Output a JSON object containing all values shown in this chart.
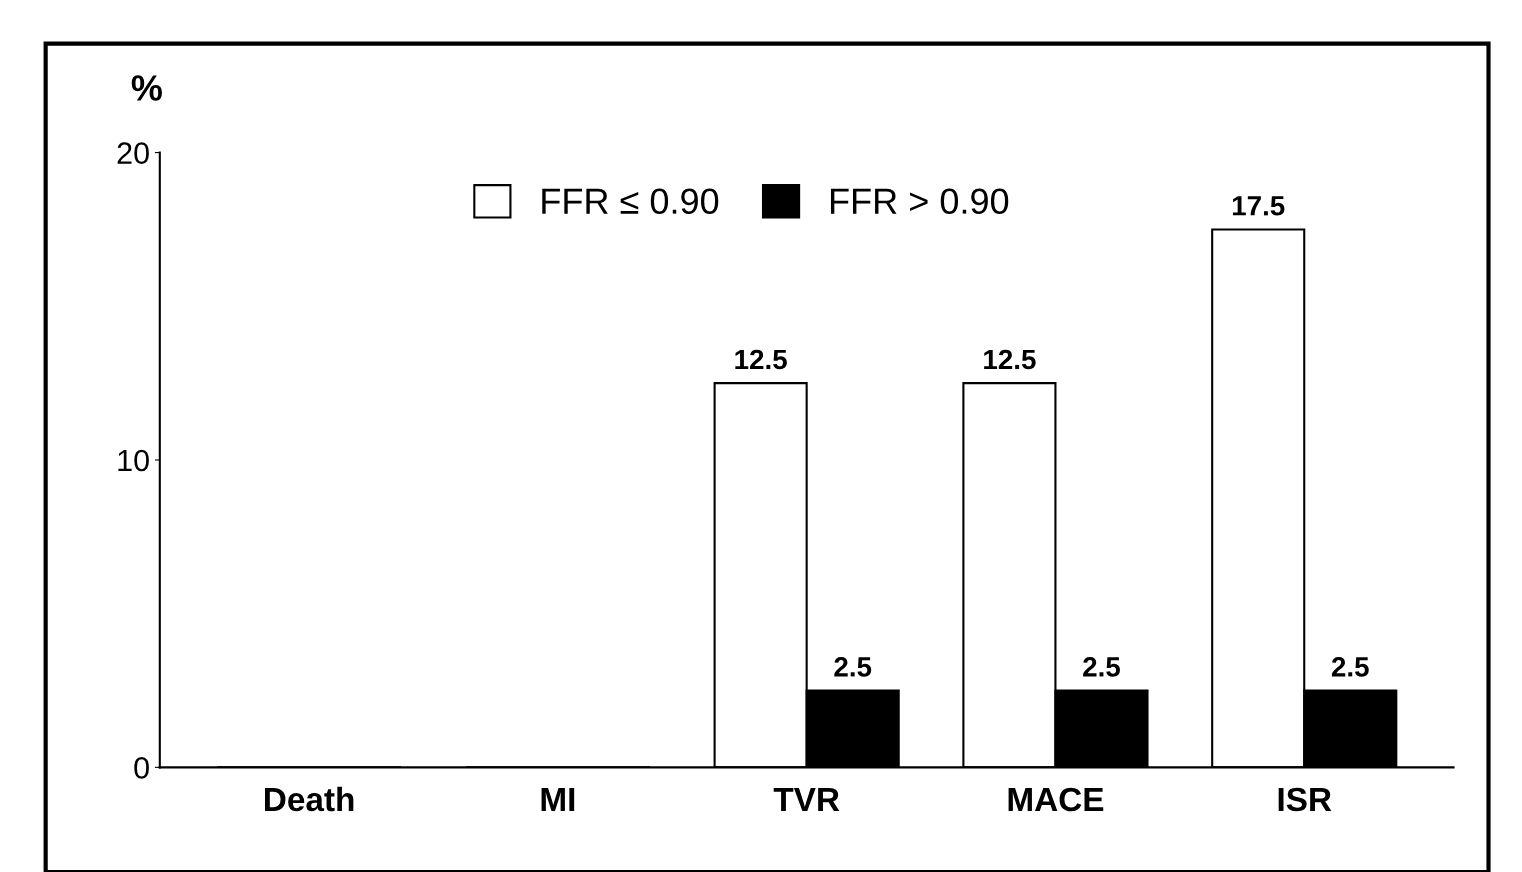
{
  "chart_data": {
    "type": "bar",
    "ylabel": "%",
    "categories": [
      "Death",
      "MI",
      "TVR",
      "MACE",
      "ISR"
    ],
    "series": [
      {
        "name": "FFR ≤ 0.90",
        "color": "#ffffff",
        "values": [
          0,
          0,
          12.5,
          12.5,
          17.5
        ],
        "value_labels": [
          null,
          null,
          "12.5",
          "12.5",
          "17.5"
        ]
      },
      {
        "name": "FFR > 0.90",
        "color": "#000000",
        "values": [
          0,
          0,
          2.5,
          2.5,
          2.5
        ],
        "value_labels": [
          null,
          null,
          "2.5",
          "2.5",
          "2.5"
        ]
      }
    ],
    "ylim": [
      0,
      20
    ],
    "yticks": [
      0,
      10,
      20
    ],
    "grid": false,
    "legend": "top"
  }
}
